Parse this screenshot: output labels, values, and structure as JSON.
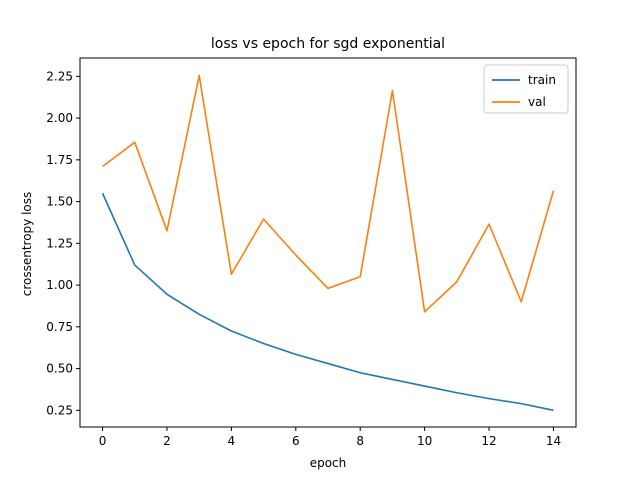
{
  "chart_data": {
    "type": "line",
    "title": "loss vs epoch for sgd exponential",
    "xlabel": "epoch",
    "ylabel": "crossentropy loss",
    "x": [
      0,
      1,
      2,
      3,
      4,
      5,
      6,
      7,
      8,
      9,
      10,
      11,
      12,
      13,
      14
    ],
    "xlim": [
      -0.7,
      14.7
    ],
    "ylim": [
      0.15,
      2.36
    ],
    "xticks": [
      0,
      2,
      4,
      6,
      8,
      10,
      12,
      14
    ],
    "yticks": [
      0.25,
      0.5,
      0.75,
      1.0,
      1.25,
      1.5,
      1.75,
      2.0,
      2.25
    ],
    "ytick_labels": [
      "0.25",
      "0.50",
      "0.75",
      "1.00",
      "1.25",
      "1.50",
      "1.75",
      "2.00",
      "2.25"
    ],
    "grid": false,
    "legend_position": "top-right",
    "series": [
      {
        "name": "train",
        "color": "#1f77b4",
        "values": [
          1.55,
          1.12,
          0.945,
          0.825,
          0.725,
          0.65,
          0.585,
          0.53,
          0.475,
          0.435,
          0.395,
          0.355,
          0.32,
          0.29,
          0.25
        ]
      },
      {
        "name": "val",
        "color": "#ff7f0e",
        "values": [
          1.71,
          1.855,
          1.325,
          2.255,
          1.065,
          1.395,
          1.18,
          0.98,
          1.05,
          2.165,
          0.84,
          1.02,
          1.365,
          0.9,
          1.565
        ]
      }
    ]
  }
}
